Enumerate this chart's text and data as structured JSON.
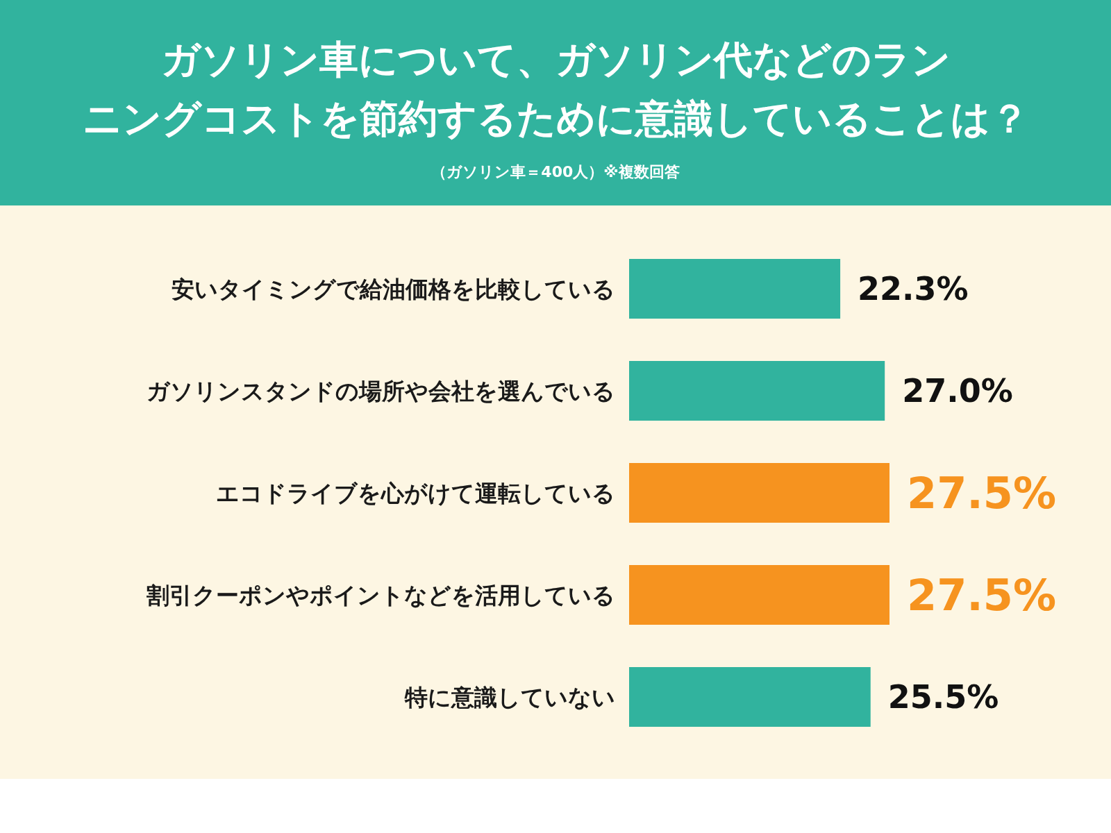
{
  "chart_data": {
    "type": "bar",
    "orientation": "horizontal",
    "title": "ガソリン車について、ガソリン代などのランニングコストを節約するために意識していることは？",
    "subtitle": "（ガソリン車＝400人）※複数回答",
    "categories": [
      "安いタイミングで給油価格を比較している",
      "ガソリンスタンドの場所や会社を選んでいる",
      "エコドライブを心がけて運転している",
      "割引クーポンやポイントなどを活用している",
      "特に意識していない"
    ],
    "values": [
      22.3,
      27.0,
      27.5,
      27.5,
      25.5
    ],
    "value_labels": [
      "22.3%",
      "27.0%",
      "27.5%",
      "27.5%",
      "25.5%"
    ],
    "colors": [
      "#31b39e",
      "#31b39e",
      "#f6931f",
      "#f6931f",
      "#31b39e"
    ]
  }
}
